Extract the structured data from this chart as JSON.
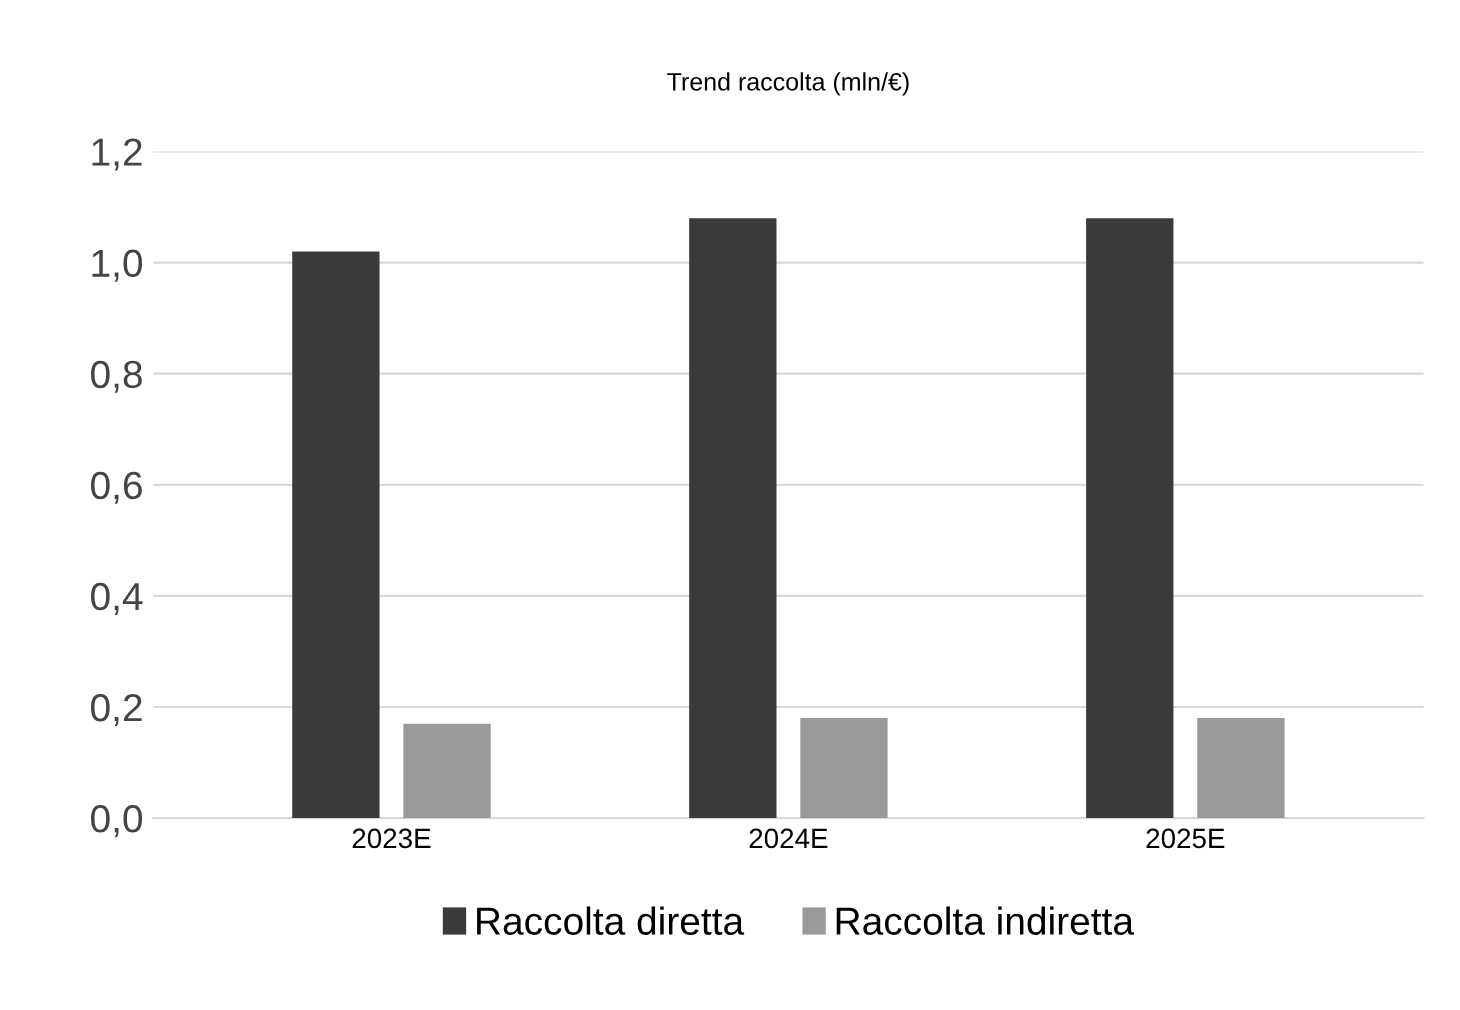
{
  "chart_data": {
    "type": "bar",
    "title": "Trend raccolta (mln/€)",
    "categories": [
      "2023E",
      "2024E",
      "2025E"
    ],
    "series": [
      {
        "name": "Raccolta diretta",
        "color": "#3a3a3c",
        "values": [
          1.02,
          1.08,
          1.08
        ]
      },
      {
        "name": "Raccolta indiretta",
        "color": "#9a9a9a",
        "values": [
          0.17,
          0.18,
          0.18
        ]
      }
    ],
    "ylim": [
      0,
      1.2
    ],
    "yticks": [
      {
        "value": 0,
        "label": "0,0"
      },
      {
        "value": 0.2,
        "label": "0,2"
      },
      {
        "value": 0.4,
        "label": "0,4"
      },
      {
        "value": 0.6,
        "label": "0,6"
      },
      {
        "value": 0.8,
        "label": "0,8"
      },
      {
        "value": 1.0,
        "label": "1,0"
      },
      {
        "value": 1.2,
        "label": "1,2"
      }
    ],
    "grid": "y",
    "legend": "bottom"
  }
}
